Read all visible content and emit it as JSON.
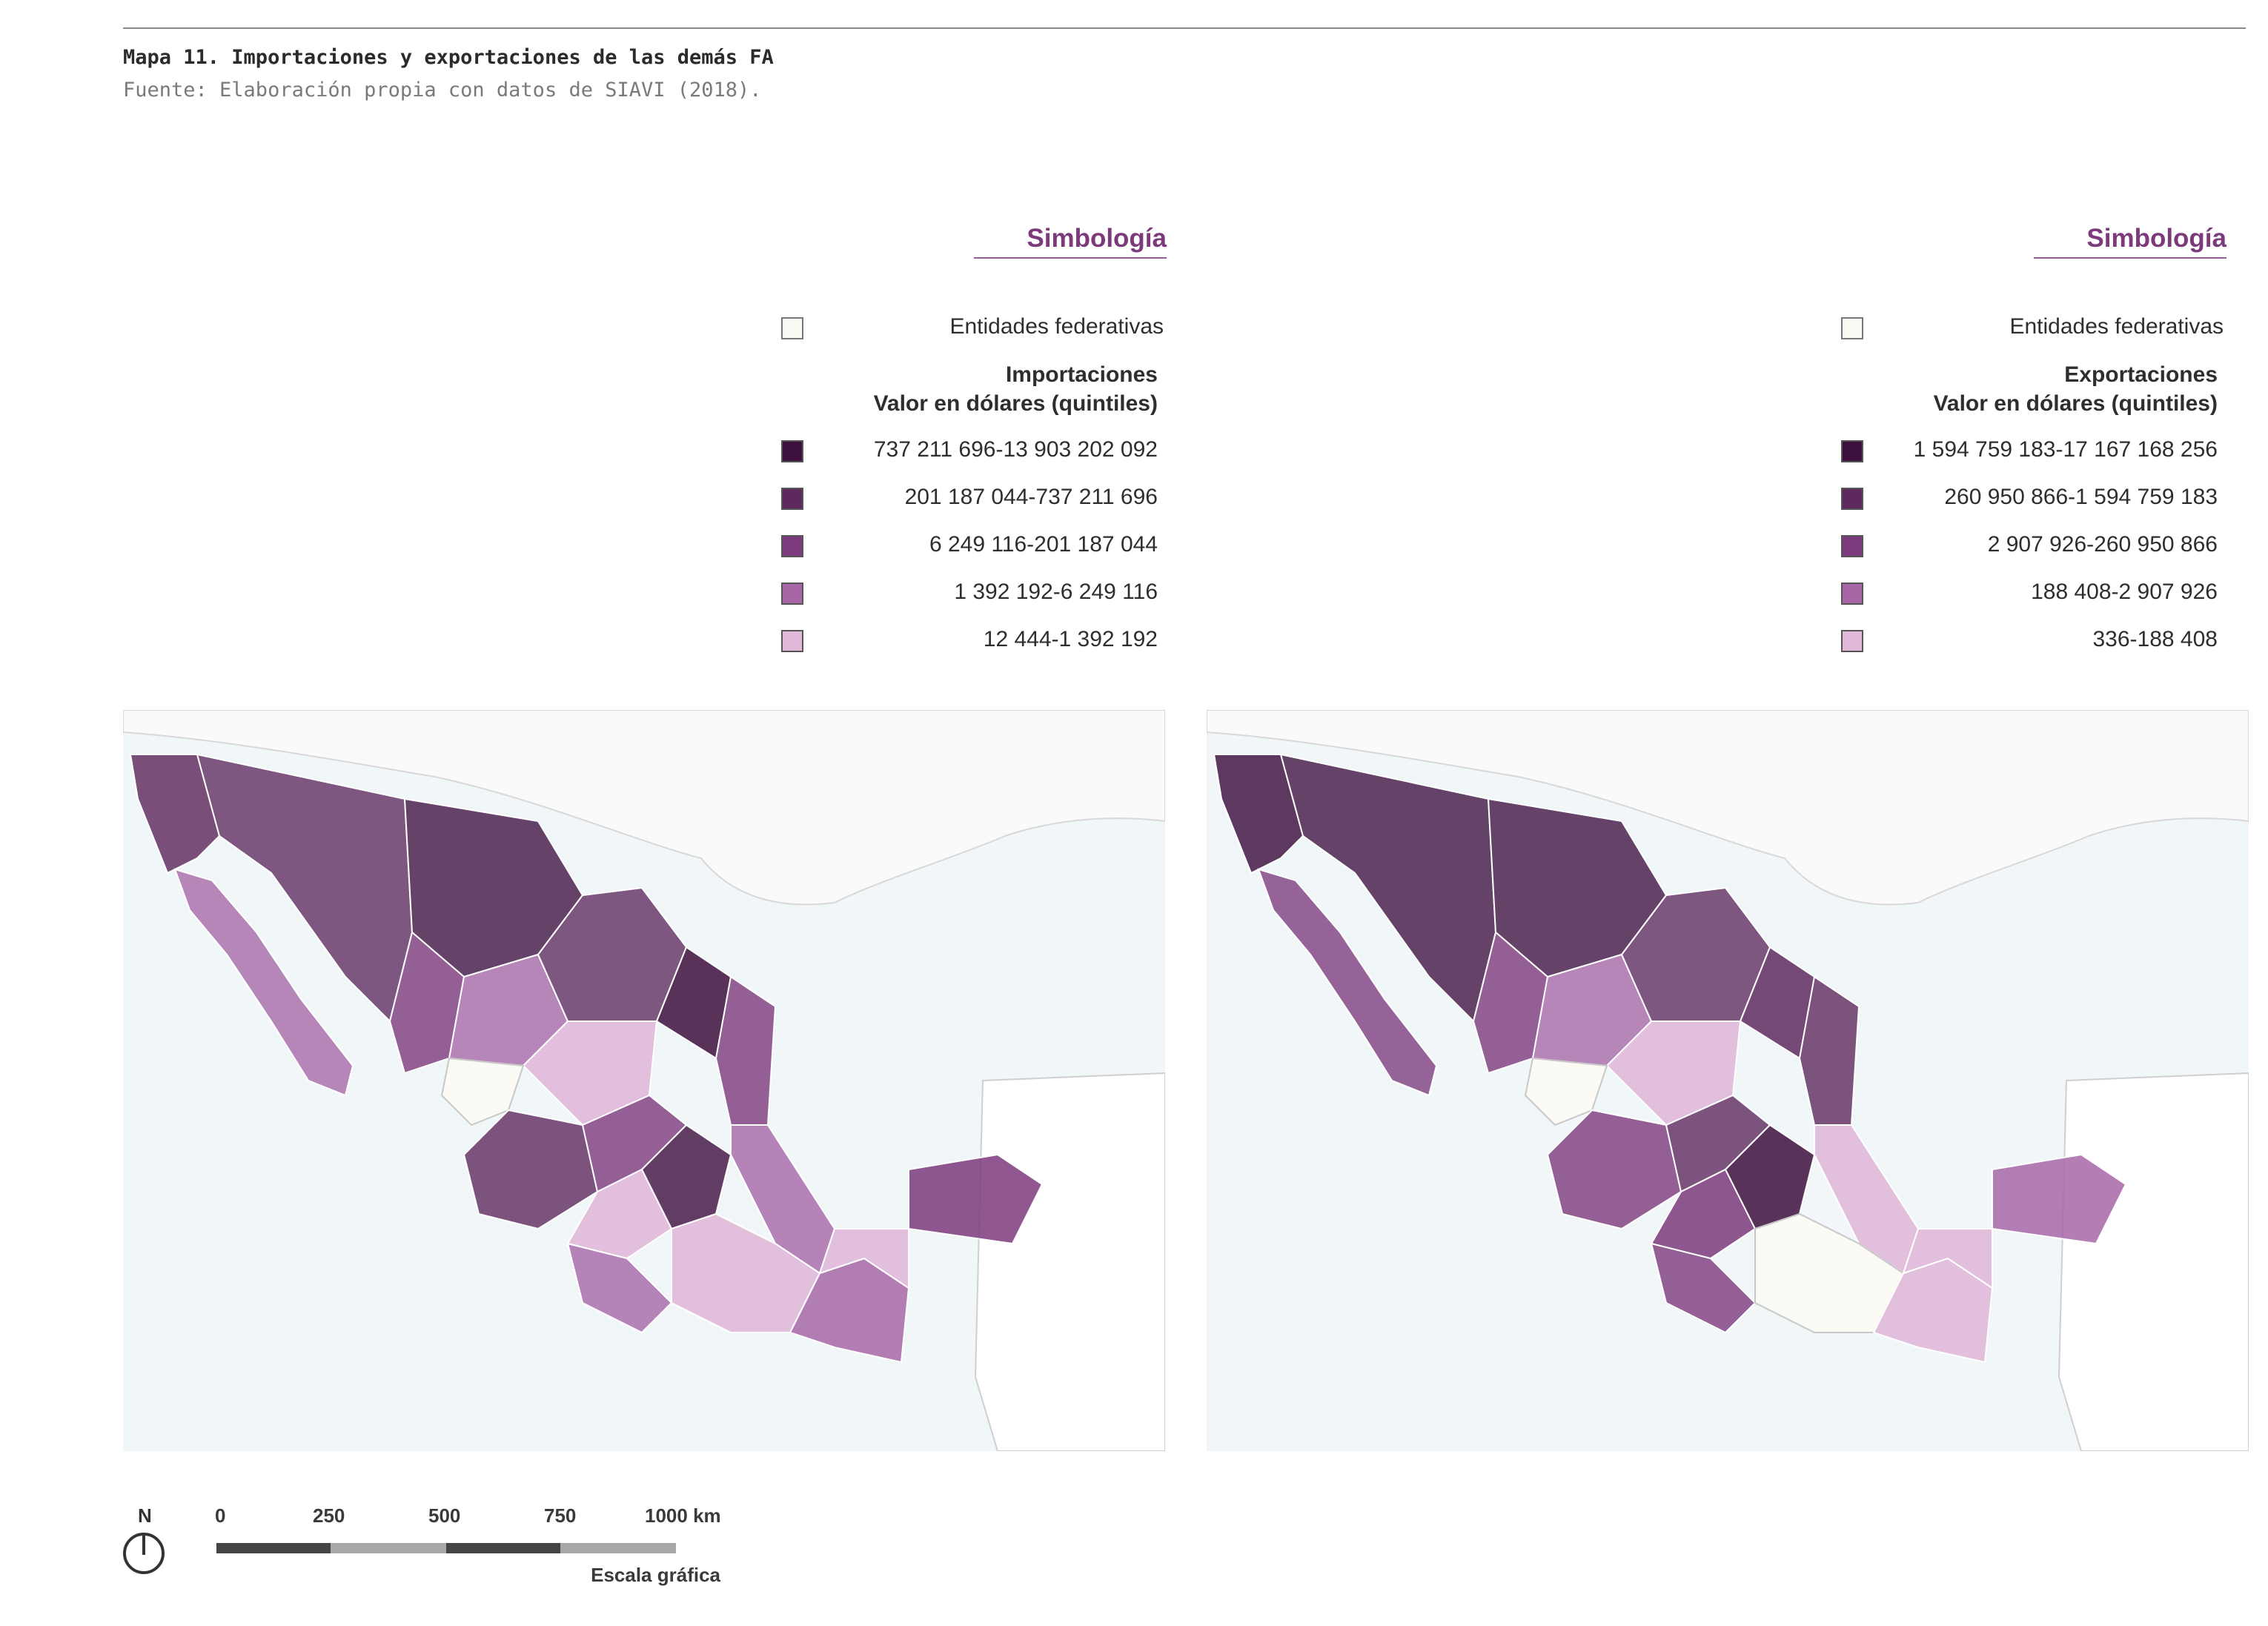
{
  "caption": {
    "title": "Mapa 11. Importaciones y exportaciones de las demás FA",
    "source": "Fuente: Elaboración propia con datos de SIAVI (2018)."
  },
  "legends": [
    {
      "title": "Simbología",
      "federal_label": "Entidades federativas",
      "heading_line1": "Importaciones",
      "heading_line2": "Valor en dólares (quintiles)",
      "classes": [
        {
          "label": "737 211 696-13 903 202 092",
          "color": "#3d0f3d"
        },
        {
          "label": "201 187 044-737 211 696",
          "color": "#5e2a5e"
        },
        {
          "label": "6 249 116-201 187 044",
          "color": "#7c3a7c"
        },
        {
          "label": "1 392 192-6 249 116",
          "color": "#a767a7"
        },
        {
          "label": "12 444-1 392 192",
          "color": "#e0b9d8"
        }
      ]
    },
    {
      "title": "Simbología",
      "federal_label": "Entidades federativas",
      "heading_line1": "Exportaciones",
      "heading_line2": "Valor en dólares (quintiles)",
      "classes": [
        {
          "label": "1 594 759 183-17 167 168 256",
          "color": "#3d0f3d"
        },
        {
          "label": "260 950 866-1 594 759 183",
          "color": "#5e2a5e"
        },
        {
          "label": "2 907 926-260 950 866",
          "color": "#7c3a7c"
        },
        {
          "label": "188 408-2 907 926",
          "color": "#a767a7"
        },
        {
          "label": "336-188 408",
          "color": "#e0b9d8"
        }
      ]
    }
  ],
  "federal_fill": "#fbfaf5",
  "north_label": "N",
  "scale": {
    "ticks": [
      "0",
      "250",
      "500",
      "750",
      "1000 km"
    ],
    "caption": "Escala gráfica"
  }
}
